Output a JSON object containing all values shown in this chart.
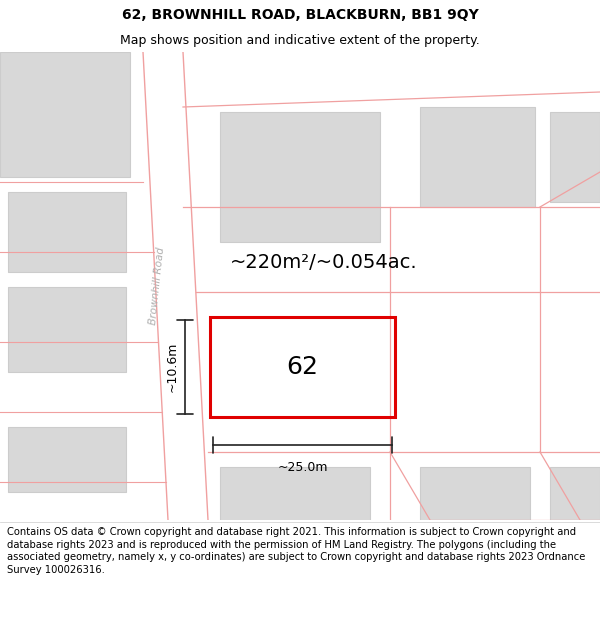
{
  "title_line1": "62, BROWNHILL ROAD, BLACKBURN, BB1 9QY",
  "title_line2": "Map shows position and indicative extent of the property.",
  "footer_text": "Contains OS data © Crown copyright and database right 2021. This information is subject to Crown copyright and database rights 2023 and is reproduced with the permission of HM Land Registry. The polygons (including the associated geometry, namely x, y co-ordinates) are subject to Crown copyright and database rights 2023 Ordnance Survey 100026316.",
  "background_color": "#ffffff",
  "road_outline_color": "#f0a0a0",
  "building_fill_color": "#d8d8d8",
  "building_edge_color": "#cccccc",
  "highlight_color": "#e00000",
  "road_label": "Brownhill Road",
  "area_label": "~220m²/~0.054ac.",
  "plot_label": "62",
  "dim_width": "~25.0m",
  "dim_height": "~10.6m",
  "title_fontsize": 10,
  "subtitle_fontsize": 9,
  "footer_fontsize": 7.2,
  "road_label_color": "#b0b0b0",
  "dim_color": "#222222",
  "area_fontsize": 14,
  "plot_fontsize": 18
}
